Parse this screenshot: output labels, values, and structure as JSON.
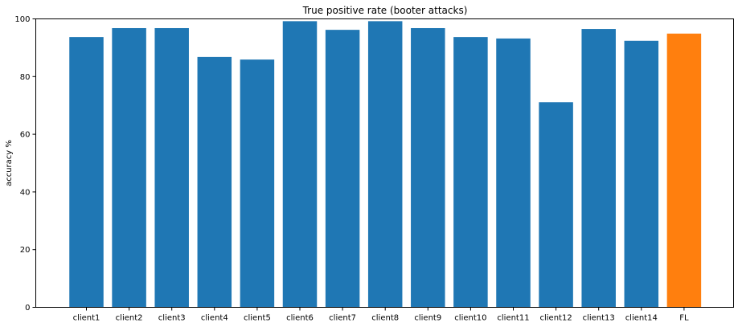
{
  "chart_data": {
    "type": "bar",
    "title": "True positive rate (booter attacks)",
    "xlabel": "",
    "ylabel": "accuracy %",
    "ylim": [
      0,
      100
    ],
    "yticks": [
      0,
      20,
      40,
      60,
      80,
      100
    ],
    "categories": [
      "client1",
      "client2",
      "client3",
      "client4",
      "client5",
      "client6",
      "client7",
      "client8",
      "client9",
      "client10",
      "client11",
      "client12",
      "client13",
      "client14",
      "FL"
    ],
    "values": [
      93.7,
      96.8,
      96.8,
      86.8,
      85.9,
      99.2,
      96.2,
      99.2,
      96.8,
      93.7,
      93.2,
      71.1,
      96.5,
      92.4,
      94.9
    ],
    "colors": [
      "#1f77b4",
      "#1f77b4",
      "#1f77b4",
      "#1f77b4",
      "#1f77b4",
      "#1f77b4",
      "#1f77b4",
      "#1f77b4",
      "#1f77b4",
      "#1f77b4",
      "#1f77b4",
      "#1f77b4",
      "#1f77b4",
      "#1f77b4",
      "#ff7f0e"
    ],
    "grid": false,
    "legend": "none"
  }
}
